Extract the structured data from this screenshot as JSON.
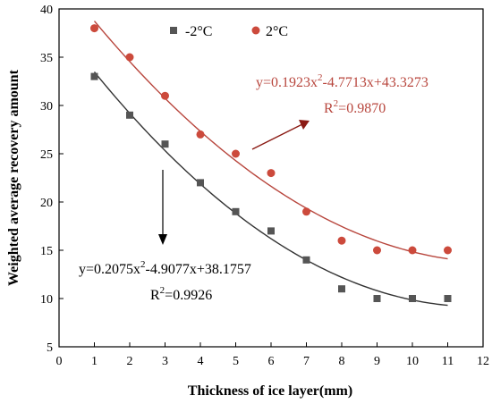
{
  "chart_data": {
    "type": "scatter",
    "title": "",
    "xlabel": "Thickness of ice layer(mm)",
    "ylabel": "Weighted average recovery amount",
    "xlim": [
      0,
      12
    ],
    "ylim": [
      5,
      40
    ],
    "x_ticks": [
      "0",
      "1",
      "2",
      "3",
      "4",
      "5",
      "6",
      "7",
      "8",
      "9",
      "10",
      "11",
      "12"
    ],
    "y_ticks": [
      "5",
      "10",
      "15",
      "20",
      "25",
      "30",
      "35",
      "40"
    ],
    "grid": false,
    "legend_position": "top-center",
    "series": [
      {
        "name": "-2°C",
        "color": "#555555",
        "marker": "square",
        "x": [
          1,
          2,
          3,
          4,
          5,
          6,
          7,
          8,
          9,
          10,
          11
        ],
        "y": [
          33,
          29,
          26,
          22,
          19,
          17,
          14,
          11,
          10,
          10,
          10
        ],
        "fit": {
          "a": 0.2075,
          "b": -4.9077,
          "c": 38.1757
        },
        "fit_color": "#333333",
        "equation": {
          "prefix": "y=0.2075x",
          "sup": "2",
          "suffix": "-4.9077x+38.1757",
          "r2_prefix": "R",
          "r2_sup": "2",
          "r2_suffix": "=0.9926"
        }
      },
      {
        "name": "2°C",
        "color": "#cc4a3c",
        "marker": "circle",
        "x": [
          1,
          2,
          3,
          4,
          5,
          6,
          7,
          8,
          9,
          10,
          11
        ],
        "y": [
          38,
          35,
          31,
          27,
          25,
          23,
          19,
          16,
          15,
          15,
          15
        ],
        "fit": {
          "a": 0.1923,
          "b": -4.7713,
          "c": 43.3273
        },
        "fit_color": "#b8463d",
        "equation": {
          "prefix": "y=0.1923x",
          "sup": "2",
          "suffix": "-4.7713x+43.3273",
          "r2_prefix": "R",
          "r2_sup": "2",
          "r2_suffix": "=0.9870"
        }
      }
    ]
  }
}
